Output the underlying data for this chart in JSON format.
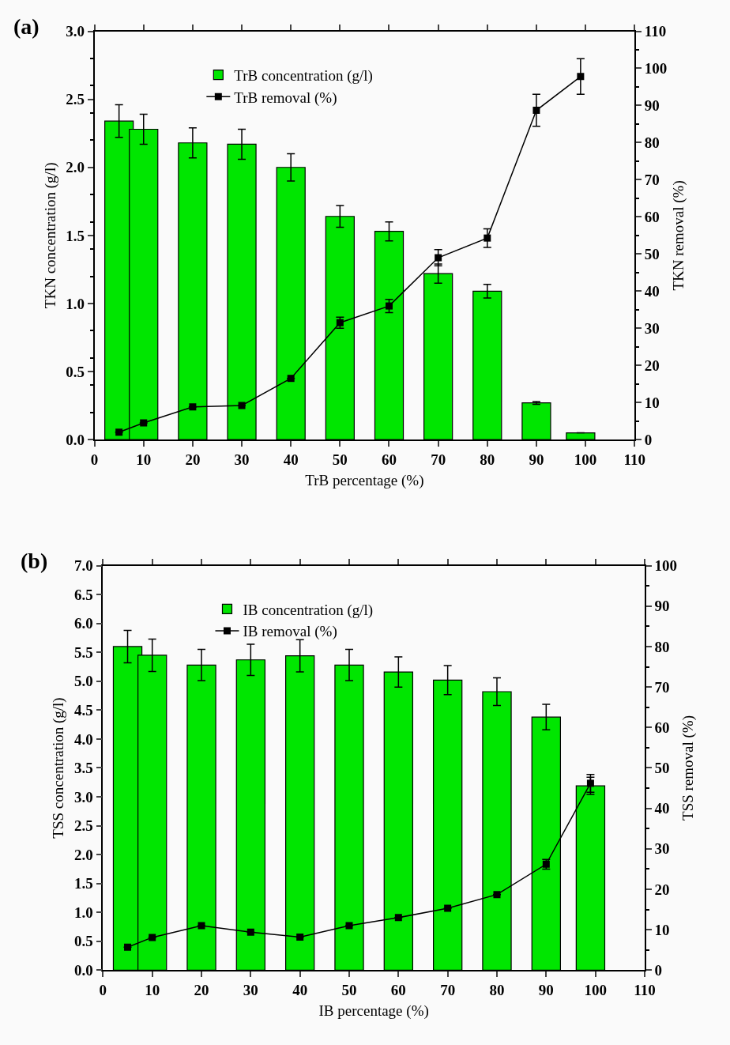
{
  "chart_data": [
    {
      "type": "bar",
      "title": "(a)",
      "xlabel": "TrB percentage (%)",
      "ylabel": "TKN concentration (g/l)",
      "y2label": "TKN removal (%)",
      "x": [
        5,
        10,
        20,
        30,
        40,
        50,
        60,
        70,
        80,
        90,
        99
      ],
      "series": [
        {
          "name": "TrB concentration (g/l)",
          "color": "#00e600",
          "values": [
            2.34,
            2.28,
            2.18,
            2.17,
            2.0,
            1.64,
            1.53,
            1.22,
            1.09,
            0.27,
            0.05
          ],
          "errors": [
            0.12,
            0.11,
            0.11,
            0.11,
            0.1,
            0.08,
            0.07,
            0.07,
            0.05,
            0.01,
            null
          ]
        },
        {
          "name": "TrB removal (%)",
          "type": "line",
          "axis": "y2",
          "color": "#000000",
          "marker": "square",
          "line_style": "solid",
          "values": [
            2,
            4.5,
            8.8,
            9.2,
            16.5,
            31.5,
            36,
            49,
            54.3,
            88.7,
            97.8
          ],
          "errors": [
            null,
            null,
            null,
            null,
            null,
            1.5,
            1.8,
            2.2,
            2.5,
            4.3,
            4.8
          ]
        }
      ],
      "xlim": [
        0,
        110
      ],
      "xticks": [
        0,
        10,
        20,
        30,
        40,
        50,
        60,
        70,
        80,
        90,
        100,
        110
      ],
      "ylim": [
        0,
        3
      ],
      "yticks": [
        {
          "value": 0,
          "label": "0.0"
        },
        {
          "value": 0.5,
          "label": "0.5"
        },
        {
          "value": 1,
          "label": "1.0"
        },
        {
          "value": 1.5,
          "label": "1.5"
        },
        {
          "value": 2,
          "label": "2.0"
        },
        {
          "value": 2.5,
          "label": "2.5"
        },
        {
          "value": 3,
          "label": "3.0"
        }
      ],
      "y2lim": [
        0,
        110
      ],
      "y2ticks": [
        0,
        10,
        20,
        30,
        40,
        50,
        60,
        70,
        80,
        90,
        100,
        110
      ],
      "legend": "top left"
    },
    {
      "type": "bar",
      "title": "(b)",
      "xlabel": "IB percentage (%)",
      "ylabel": "TSS concentration (g/l)",
      "y2label": "TSS removal (%)",
      "x": [
        5,
        10,
        20,
        30,
        40,
        50,
        60,
        70,
        80,
        90,
        99
      ],
      "series": [
        {
          "name": "IB concentration (g/l)",
          "color": "#00e600",
          "values": [
            5.6,
            5.45,
            5.28,
            5.37,
            5.44,
            5.28,
            5.16,
            5.02,
            4.82,
            4.38,
            3.19
          ],
          "errors": [
            0.28,
            0.28,
            0.27,
            0.27,
            0.28,
            0.27,
            0.26,
            0.25,
            0.24,
            0.22,
            0.15
          ]
        },
        {
          "name": "IB removal (%)",
          "type": "line",
          "axis": "y2",
          "color": "#000000",
          "marker": "square",
          "line_style": "solid",
          "values": [
            5.7,
            8.1,
            11,
            9.4,
            8.2,
            11,
            13,
            15.3,
            18.7,
            26.2,
            46.2
          ],
          "errors": [
            null,
            null,
            null,
            null,
            null,
            null,
            null,
            null,
            null,
            1.2,
            2.2
          ]
        }
      ],
      "xlim": [
        0,
        110
      ],
      "xticks": [
        0,
        10,
        20,
        30,
        40,
        50,
        60,
        70,
        80,
        90,
        100,
        110
      ],
      "ylim": [
        0,
        7
      ],
      "yticks": [
        {
          "value": 0,
          "label": "0.0"
        },
        {
          "value": 0.5,
          "label": "0.5"
        },
        {
          "value": 1,
          "label": "1.0"
        },
        {
          "value": 1.5,
          "label": "1.5"
        },
        {
          "value": 2,
          "label": "2.0"
        },
        {
          "value": 2.5,
          "label": "2.5"
        },
        {
          "value": 3,
          "label": "3.0"
        },
        {
          "value": 3.5,
          "label": "3.5"
        },
        {
          "value": 4,
          "label": "4.0"
        },
        {
          "value": 4.5,
          "label": "4.5"
        },
        {
          "value": 5,
          "label": "5.0"
        },
        {
          "value": 5.5,
          "label": "5.5"
        },
        {
          "value": 6,
          "label": "6.0"
        },
        {
          "value": 6.5,
          "label": "6.5"
        },
        {
          "value": 7,
          "label": "7.0"
        }
      ],
      "y2lim": [
        0,
        100
      ],
      "y2ticks": [
        0,
        10,
        20,
        30,
        40,
        50,
        60,
        70,
        80,
        90,
        100
      ],
      "legend": "top left"
    }
  ]
}
